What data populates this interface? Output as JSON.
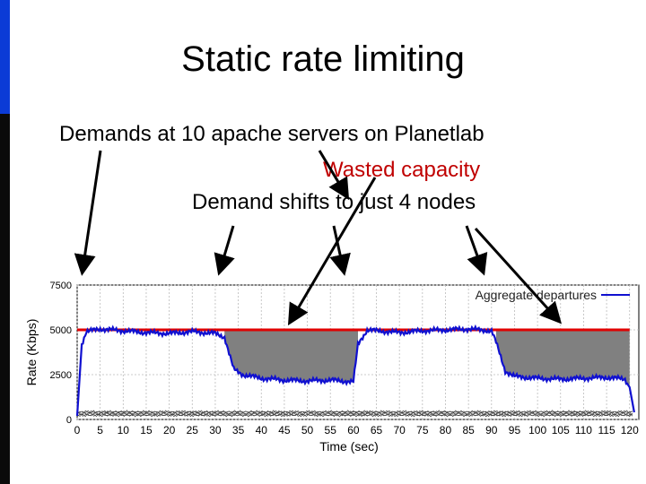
{
  "slide": {
    "title": "Static rate limiting",
    "annotation_demands": "Demands at 10 apache servers on Planetlab",
    "annotation_wasted": "Wasted capacity",
    "annotation_shift": "Demand shifts to just 4 nodes"
  },
  "colors": {
    "accent_bar": "#0b3bd6",
    "limit_line": "#e00000",
    "aggregate": "#1010d0",
    "wasted_fill": "#808080",
    "wasted_text": "#c00000"
  },
  "chart_data": {
    "type": "line",
    "xlabel": "Time (sec)",
    "ylabel": "Rate (Kbps)",
    "xlim": [
      0,
      122
    ],
    "ylim": [
      0,
      7500
    ],
    "xticks": [
      0,
      5,
      10,
      15,
      20,
      25,
      30,
      35,
      40,
      45,
      50,
      55,
      60,
      65,
      70,
      75,
      80,
      85,
      90,
      95,
      100,
      105,
      110,
      115,
      120
    ],
    "yticks": [
      0,
      2500,
      5000,
      7500
    ],
    "grid": true,
    "legend": {
      "position": "top-right",
      "entries": [
        "Aggregate departures"
      ]
    },
    "limit": 5000,
    "series": [
      {
        "name": "Aggregate departures",
        "points": [
          [
            0,
            200
          ],
          [
            1,
            4200
          ],
          [
            2,
            4900
          ],
          [
            5,
            5050
          ],
          [
            10,
            4950
          ],
          [
            15,
            4850
          ],
          [
            20,
            4800
          ],
          [
            25,
            4900
          ],
          [
            30,
            4800
          ],
          [
            32,
            4600
          ],
          [
            34,
            2800
          ],
          [
            36,
            2500
          ],
          [
            40,
            2300
          ],
          [
            45,
            2200
          ],
          [
            50,
            2150
          ],
          [
            55,
            2200
          ],
          [
            60,
            2100
          ],
          [
            61,
            4200
          ],
          [
            63,
            5000
          ],
          [
            65,
            4950
          ],
          [
            70,
            4850
          ],
          [
            75,
            4950
          ],
          [
            80,
            5000
          ],
          [
            85,
            5050
          ],
          [
            90,
            4950
          ],
          [
            91,
            4300
          ],
          [
            93,
            2700
          ],
          [
            95,
            2400
          ],
          [
            100,
            2300
          ],
          [
            105,
            2250
          ],
          [
            110,
            2300
          ],
          [
            115,
            2350
          ],
          [
            119,
            2250
          ],
          [
            120,
            1800
          ],
          [
            121,
            400
          ]
        ]
      }
    ],
    "wasted_regions": [
      [
        32,
        61
      ],
      [
        91,
        120
      ]
    ]
  }
}
